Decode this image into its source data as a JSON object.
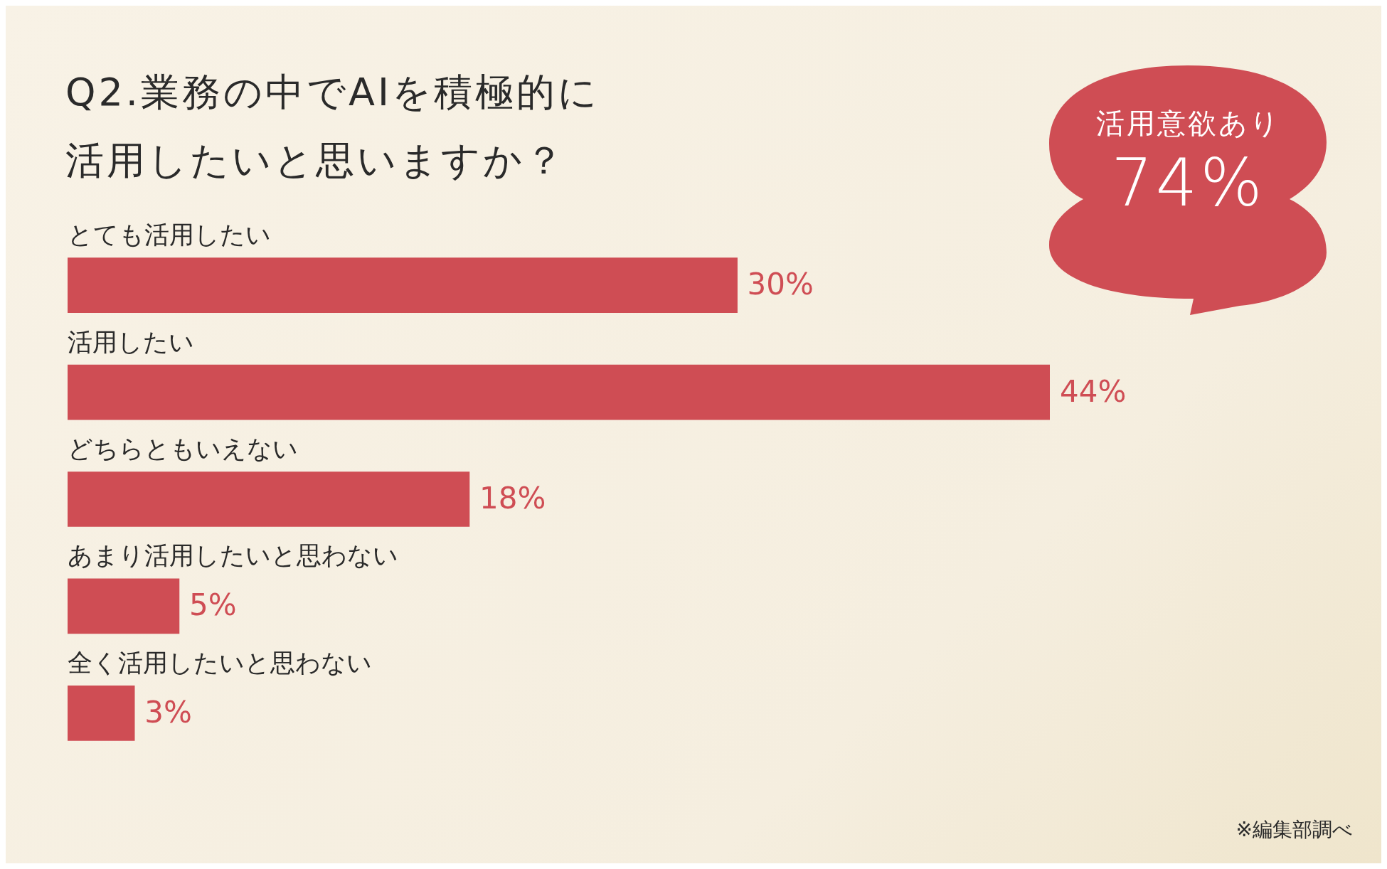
{
  "chart_data": {
    "type": "bar",
    "orientation": "horizontal",
    "title": "Q2.業務の中でAIを積極的に活用したいと思いますか？",
    "categories": [
      "とても活用したい",
      "活用したい",
      "どちらともいえない",
      "あまり活用したいと思わない",
      "全く活用したいと思わない"
    ],
    "values": [
      30,
      44,
      18,
      5,
      3
    ],
    "color": "#cf4d54",
    "data_labels": true,
    "value_labels": [
      "30%",
      "44%",
      "18%",
      "5%",
      "3%"
    ],
    "annotations": [
      "活用意欲あり",
      "74%",
      "※編集部調べ"
    ]
  }
}
